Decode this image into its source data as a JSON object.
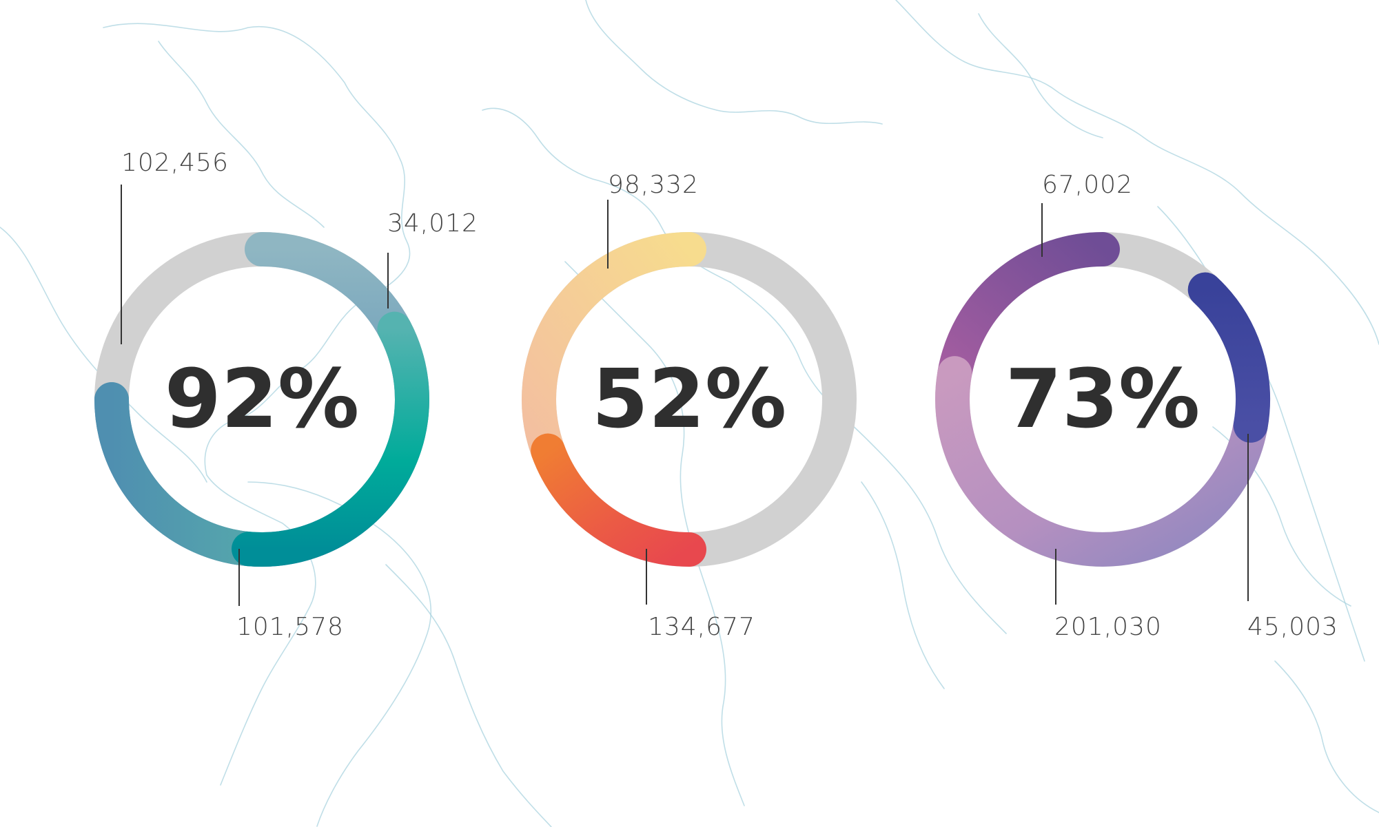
{
  "chart_data": [
    {
      "type": "donut",
      "center_label": "92%",
      "percent": 92,
      "colors": {
        "track": "#d1d1d1",
        "start": "#85aebf",
        "mid": "#4a8ab5",
        "end": "#00ab9a"
      },
      "segments": [
        {
          "label": "102,456",
          "value": 102456
        },
        {
          "label": "101,578",
          "value": 101578
        },
        {
          "label": "34,012",
          "value": 34012
        }
      ]
    },
    {
      "type": "donut",
      "center_label": "52%",
      "percent": 52,
      "colors": {
        "track": "#d1d1d1",
        "start": "#f6d48e",
        "mid": "#f07b3a",
        "end": "#e8484e"
      },
      "segments": [
        {
          "label": "98,332",
          "value": 98332
        },
        {
          "label": "134,677",
          "value": 134677
        }
      ]
    },
    {
      "type": "donut",
      "center_label": "73%",
      "percent": 73,
      "colors": {
        "track": "#d1d1d1",
        "start": "#7a4f98",
        "mid": "#c598bf",
        "end": "#3a469c"
      },
      "segments": [
        {
          "label": "67,002",
          "value": 67002
        },
        {
          "label": "201,030",
          "value": 201030
        },
        {
          "label": "45,003",
          "value": 45003
        }
      ]
    }
  ]
}
